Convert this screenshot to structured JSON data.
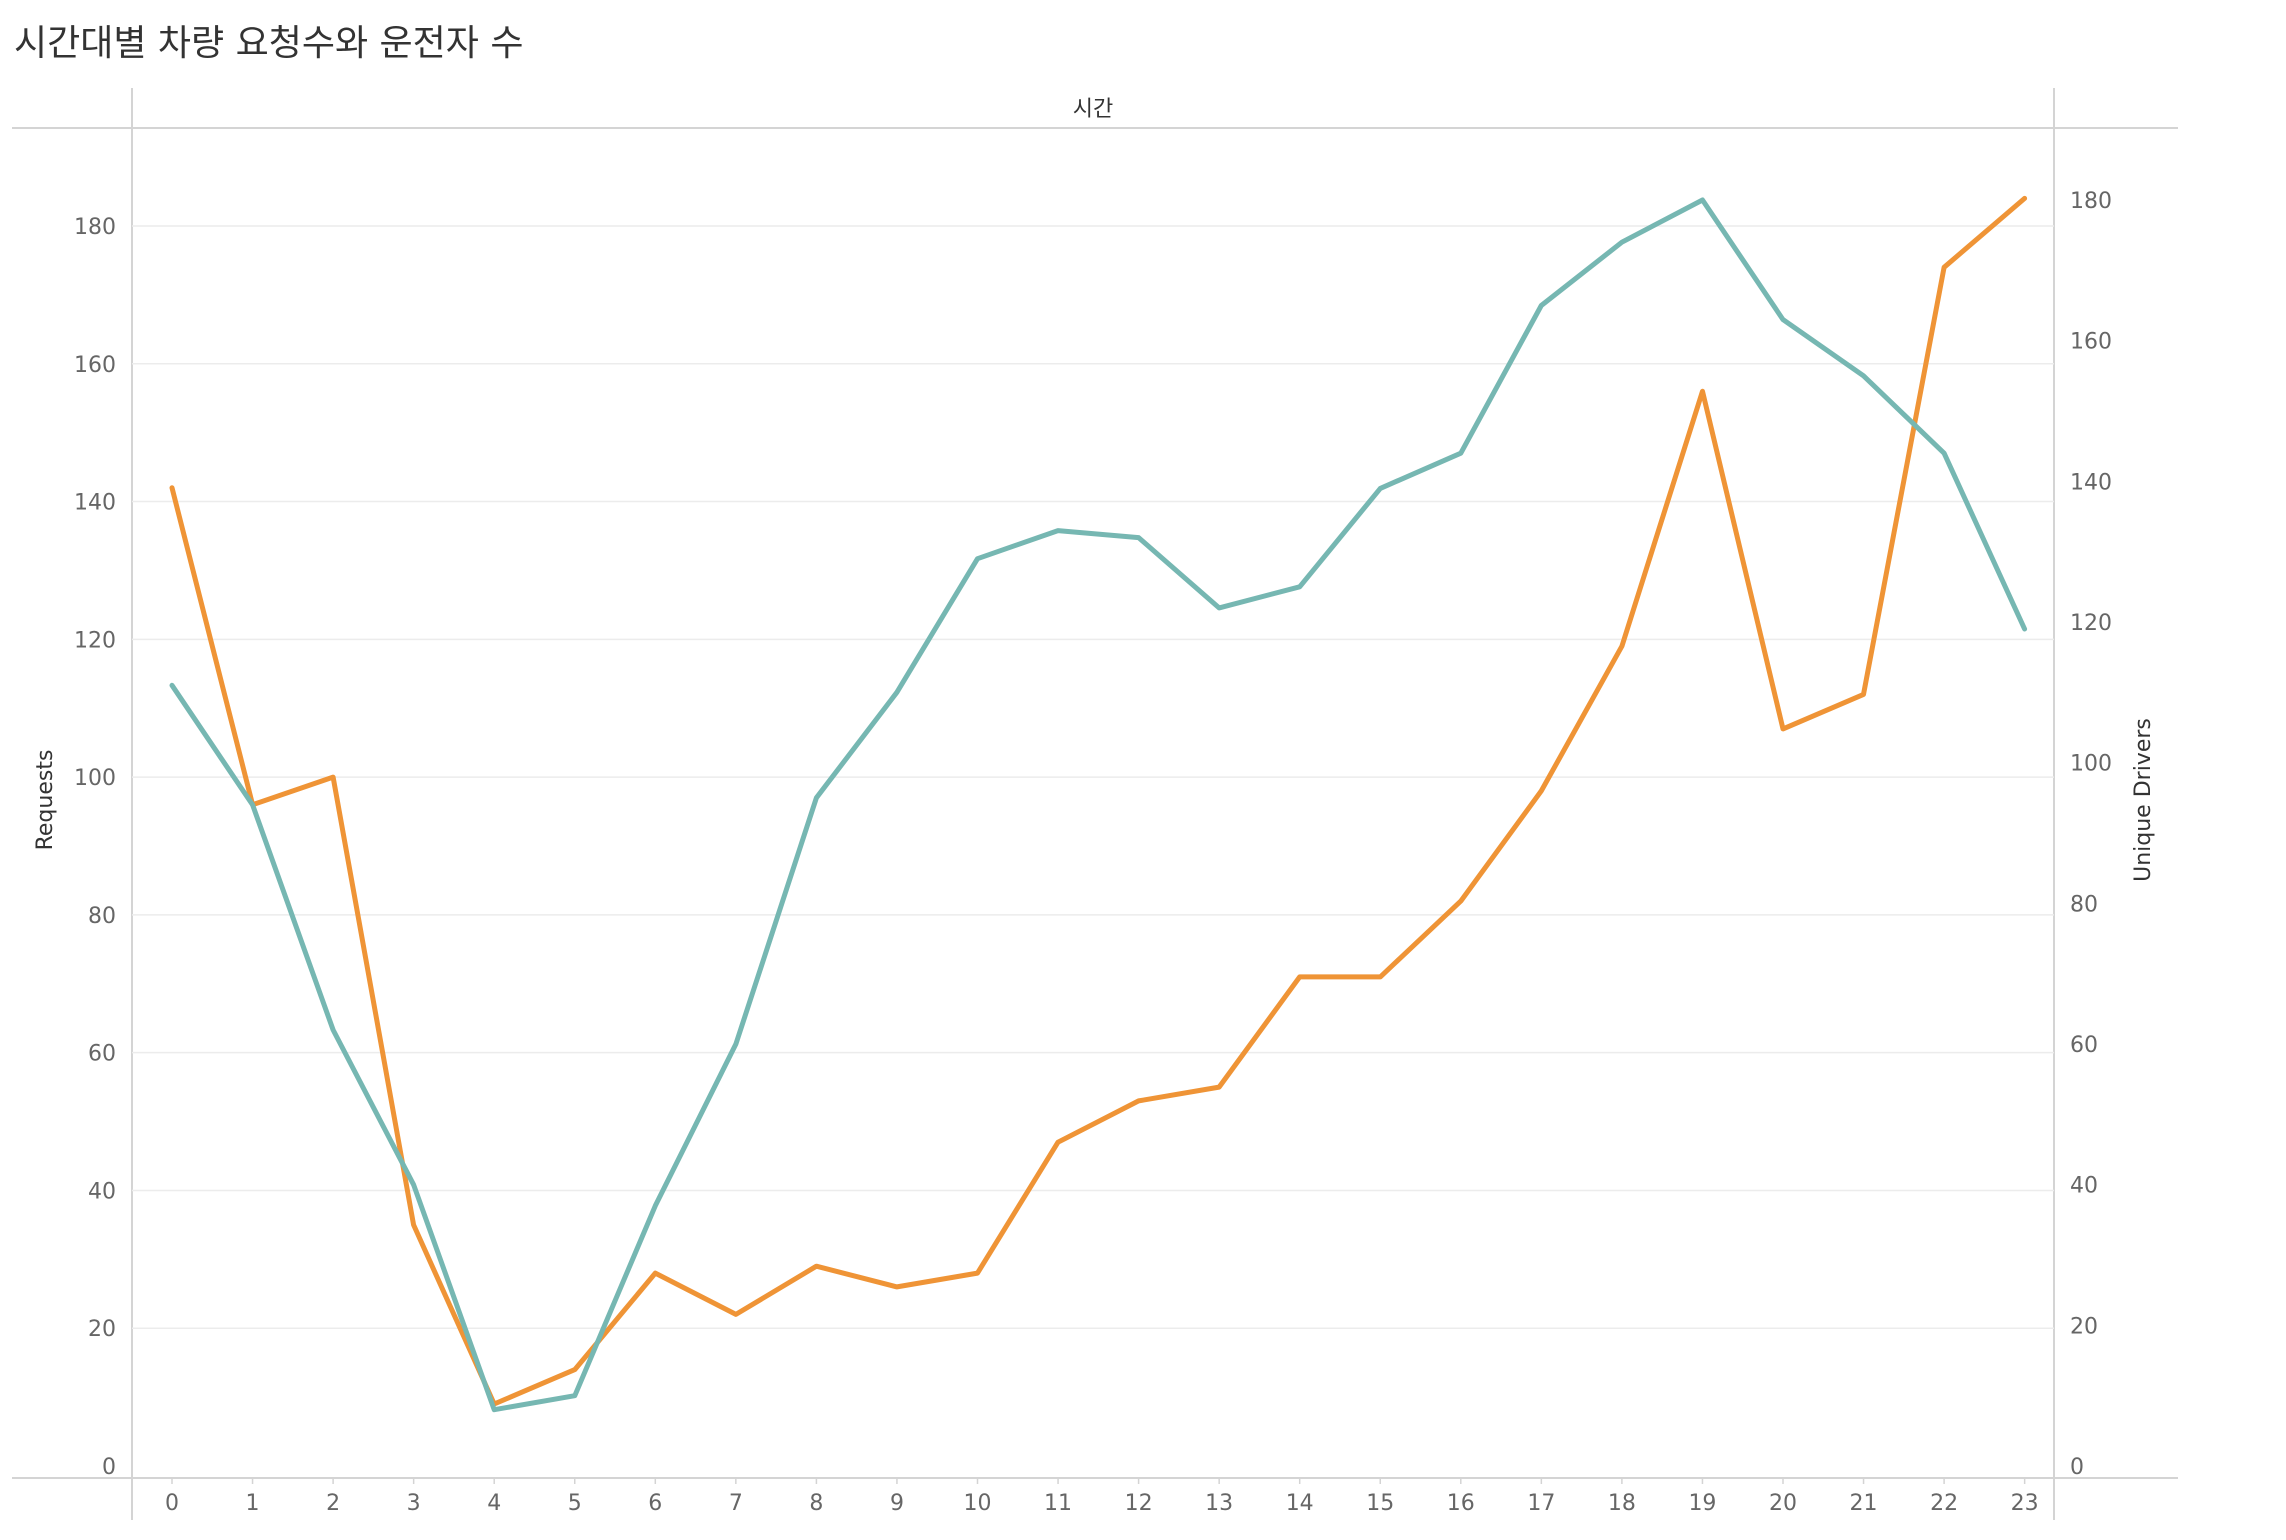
{
  "chart_data": {
    "type": "line",
    "title": "시간대별 차량 요청수와 운전자 수",
    "header_label": "시간",
    "y_left_label": "Requests",
    "y_right_label": "Unique Drivers",
    "x": [
      0,
      1,
      2,
      3,
      4,
      5,
      6,
      7,
      8,
      9,
      10,
      11,
      12,
      13,
      14,
      15,
      16,
      17,
      18,
      19,
      20,
      21,
      22,
      23
    ],
    "y_left_ticks": [
      0,
      20,
      40,
      60,
      80,
      100,
      120,
      140,
      160,
      180
    ],
    "y_right_ticks": [
      0,
      20,
      40,
      60,
      80,
      100,
      120,
      140,
      160,
      180
    ],
    "y_left_range": [
      0,
      190
    ],
    "y_right_range": [
      0,
      188
    ],
    "grid": true,
    "series": [
      {
        "axis": "left",
        "color": "#ef9436",
        "values": [
          142,
          96,
          100,
          35,
          9,
          14,
          28,
          22,
          29,
          26,
          28,
          47,
          53,
          55,
          71,
          71,
          82,
          98,
          119,
          156,
          107,
          112,
          174,
          184
        ]
      },
      {
        "axis": "right",
        "color": "#76b7b2",
        "values": [
          111,
          94,
          62,
          40,
          8,
          10,
          37,
          60,
          95,
          110,
          129,
          133,
          132,
          122,
          125,
          139,
          144,
          165,
          174,
          180,
          163,
          155,
          144,
          119
        ]
      }
    ]
  }
}
